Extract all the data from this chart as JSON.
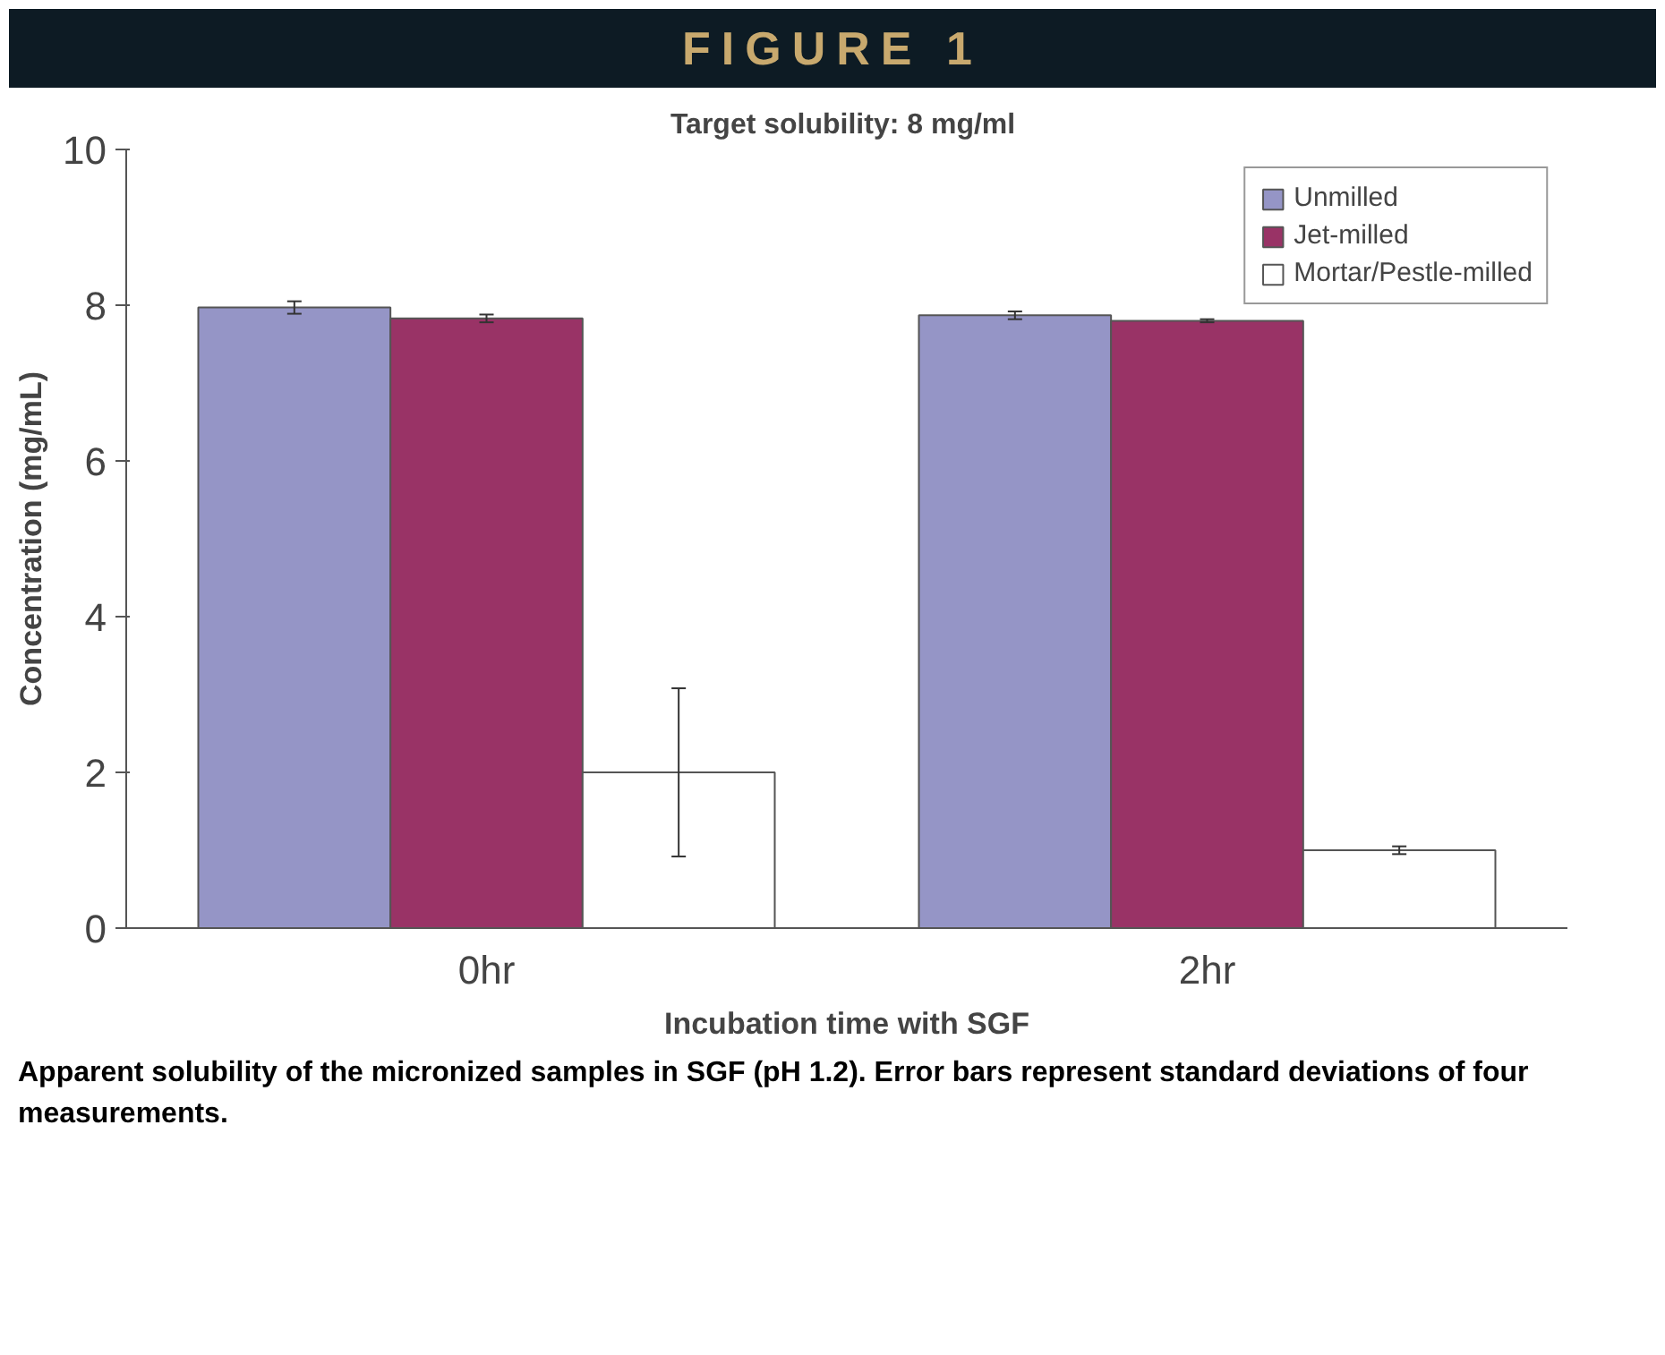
{
  "chart_data": {
    "type": "bar",
    "title": "FIGURE 1",
    "xlabel": "Incubation time with SGF",
    "ylabel": "Concentration (mg/mL)",
    "categories": [
      "0hr",
      "2hr"
    ],
    "series": [
      {
        "name": "Unmilled",
        "color": "#9595c6",
        "values": [
          7.97,
          7.87
        ],
        "errors": [
          0.08,
          0.05
        ]
      },
      {
        "name": "Jet-milled",
        "color": "#993366",
        "values": [
          7.83,
          7.8
        ],
        "errors": [
          0.05,
          0.02
        ]
      },
      {
        "name": "Mortar/Pestle-milled",
        "color": "#ffffff",
        "values": [
          2.0,
          1.0
        ],
        "errors": [
          1.08,
          0.05
        ]
      }
    ],
    "ylim": [
      0,
      10
    ],
    "yticks": [
      0,
      2,
      4,
      6,
      8,
      10
    ],
    "grid": false,
    "legend": "top right",
    "annotations": [
      "Target solubility:  8 mg/ml",
      "Apparent solubility of the micronized samples in SGF (pH 1.2). Error bars represent standard deviations of four measurements."
    ]
  }
}
